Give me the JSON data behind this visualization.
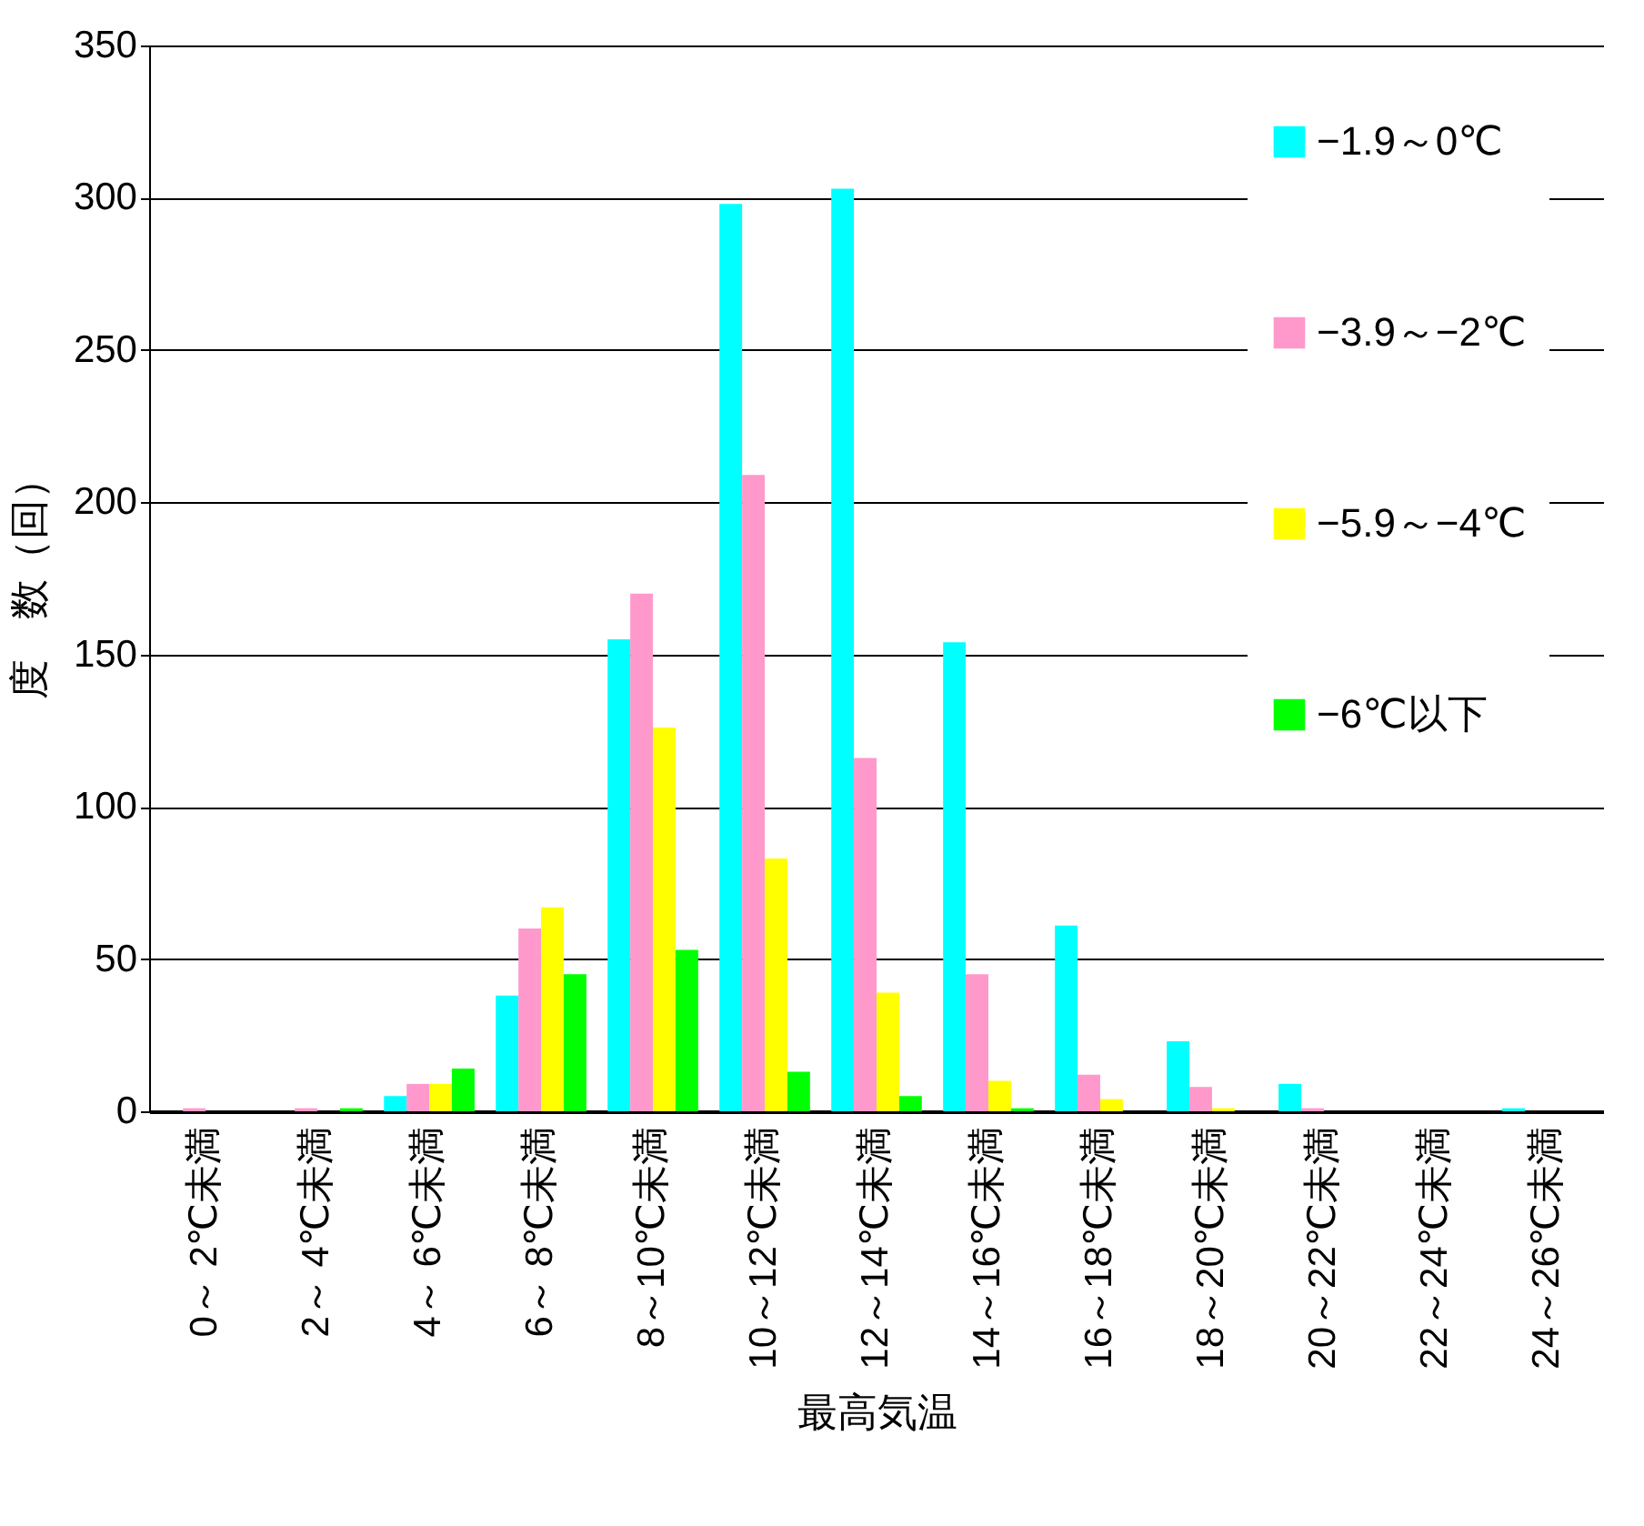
{
  "chart_data": {
    "type": "bar",
    "xlabel": "最高気温",
    "ylabel": "度　数（回）",
    "categories": [
      "0～ 2℃未満",
      "2～ 4℃未満",
      "4～ 6℃未満",
      "6～ 8℃未満",
      "8～10℃未満",
      "10～12℃未満",
      "12～14℃未満",
      "14～16℃未満",
      "16～18℃未満",
      "18～20℃未満",
      "20～22℃未満",
      "22～24℃未満",
      "24～26℃未満"
    ],
    "series": [
      {
        "name": "−1.9～0℃",
        "color": "#00ffff",
        "values": [
          0,
          0,
          5,
          38,
          155,
          298,
          303,
          154,
          61,
          23,
          9,
          0,
          1
        ]
      },
      {
        "name": "−3.9～−2℃",
        "color": "#ff99cc",
        "values": [
          1,
          1,
          9,
          60,
          170,
          209,
          116,
          45,
          12,
          8,
          1,
          0,
          0
        ]
      },
      {
        "name": "−5.9～−4℃",
        "color": "#ffff00",
        "values": [
          0,
          0,
          9,
          67,
          126,
          83,
          39,
          10,
          4,
          1,
          0,
          0,
          0
        ]
      },
      {
        "name": "−6℃以下",
        "color": "#00ff00",
        "values": [
          0,
          1,
          14,
          45,
          53,
          13,
          5,
          1,
          0,
          0,
          0,
          0,
          0
        ]
      }
    ],
    "ylim": [
      0,
      350
    ],
    "yticks": [
      0,
      50,
      100,
      150,
      200,
      250,
      300,
      350
    ],
    "grid": "y",
    "legend": "right"
  }
}
